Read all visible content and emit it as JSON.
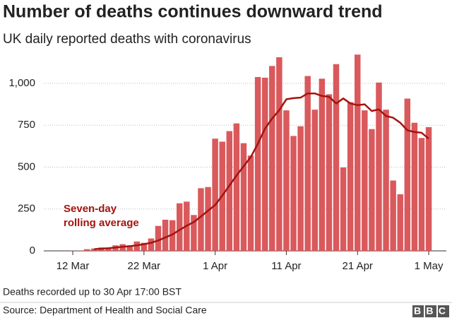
{
  "chart_data": {
    "type": "bar",
    "title": "Number of deaths continues downward trend",
    "subtitle": "UK daily reported deaths with coronavirus",
    "categories": [
      "12 Mar",
      null,
      null,
      null,
      null,
      null,
      null,
      null,
      null,
      null,
      "22 Mar",
      null,
      null,
      null,
      null,
      null,
      null,
      null,
      null,
      null,
      "1 Apr",
      null,
      null,
      null,
      null,
      null,
      null,
      null,
      null,
      null,
      "11 Apr",
      null,
      null,
      null,
      null,
      null,
      null,
      null,
      null,
      null,
      "21 Apr",
      null,
      null,
      null,
      null,
      null,
      null,
      null,
      null,
      null,
      "1 May"
    ],
    "series": [
      {
        "type": "bar",
        "color": "#d9595c",
        "values": [
          1,
          1,
          10,
          14,
          20,
          16,
          33,
          40,
          33,
          56,
          48,
          74,
          149,
          186,
          183,
          284,
          294,
          214,
          374,
          381,
          670,
          652,
          715,
          761,
          643,
          569,
          1038,
          1034,
          1104,
          1156,
          839,
          686,
          744,
          1044,
          843,
          1028,
          935,
          1115,
          498,
          888,
          1172,
          839,
          727,
          1005,
          843,
          420,
          338,
          909,
          765,
          674,
          739
        ]
      },
      {
        "type": "line",
        "name": [
          "Seven-day",
          "rolling average"
        ],
        "color": "#a3140f",
        "values": [
          null,
          null,
          null,
          10,
          13,
          16,
          20,
          24,
          28,
          33,
          40,
          48,
          62,
          80,
          98,
          125,
          150,
          172,
          205,
          240,
          274,
          330,
          390,
          450,
          505,
          560,
          640,
          730,
          790,
          840,
          905,
          912,
          915,
          940,
          940,
          925,
          920,
          880,
          910,
          880,
          870,
          875,
          835,
          845,
          805,
          795,
          765,
          720,
          710,
          705,
          670
        ]
      }
    ],
    "ylim": [
      0,
      1200
    ],
    "yticks": [
      0,
      250,
      500,
      750,
      {
        "value": 1000,
        "label": "1,000"
      }
    ],
    "grid": true,
    "note": "Deaths recorded up to 30 Apr 17:00 BST",
    "source": "Source: Department of Health and Social Care",
    "logo": "BBC"
  }
}
